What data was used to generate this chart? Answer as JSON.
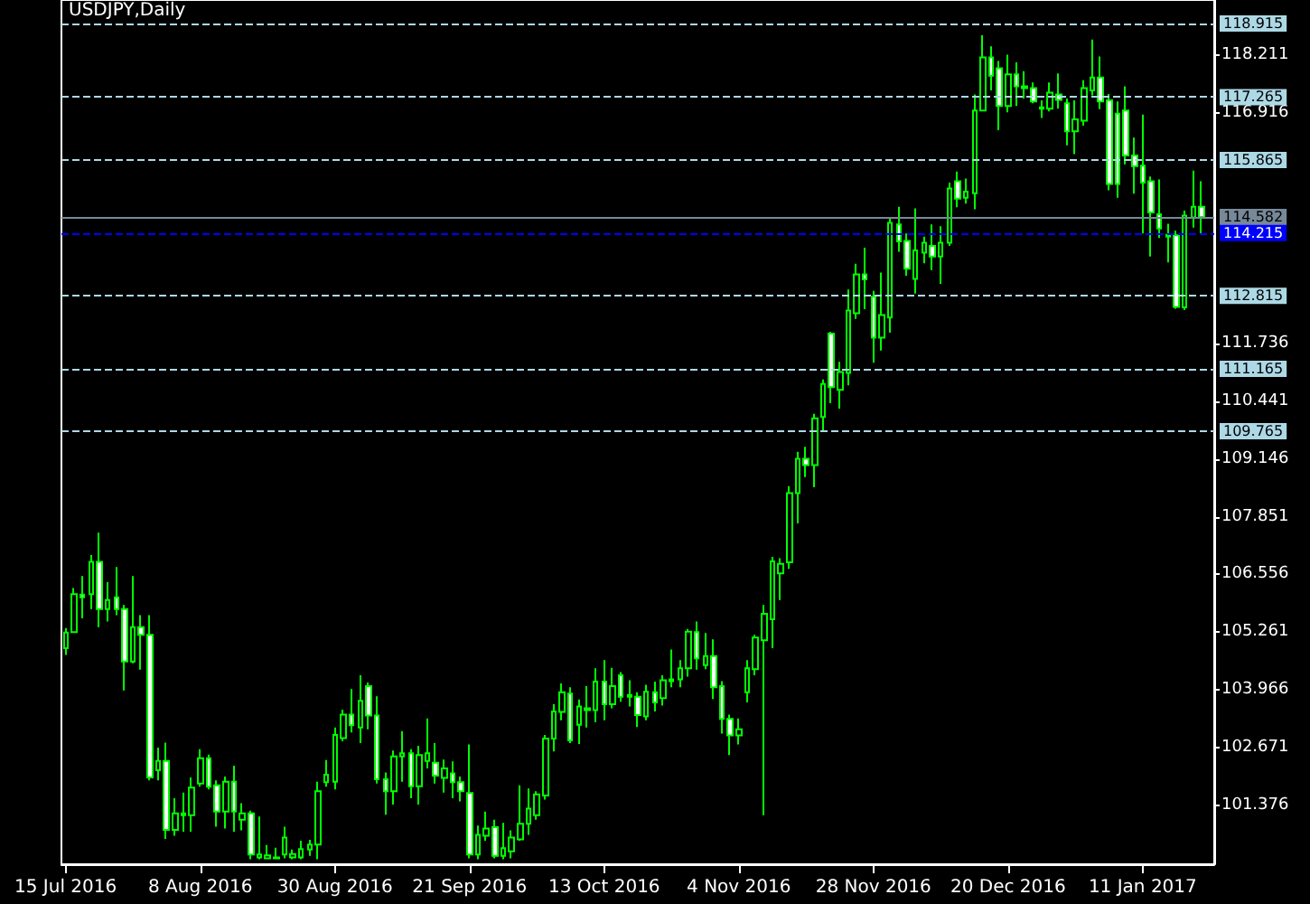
{
  "chart_data": {
    "type": "candlestick",
    "title": "USDJPY,Daily",
    "color": "#00ff00",
    "categories": [
      "15 Jul 2016",
      null,
      null,
      null,
      null,
      null,
      null,
      null,
      null,
      null,
      null,
      null,
      null,
      null,
      null,
      null,
      "8 Aug 2016",
      null,
      null,
      null,
      null,
      null,
      null,
      null,
      null,
      null,
      null,
      null,
      null,
      null,
      null,
      null,
      "30 Aug 2016",
      null,
      null,
      null,
      null,
      null,
      null,
      null,
      null,
      null,
      null,
      null,
      null,
      null,
      null,
      null,
      "21 Sep 2016",
      null,
      null,
      null,
      null,
      null,
      null,
      null,
      null,
      null,
      null,
      null,
      null,
      null,
      null,
      null,
      "13 Oct 2016",
      null,
      null,
      null,
      null,
      null,
      null,
      null,
      null,
      null,
      null,
      null,
      null,
      null,
      null,
      null,
      "4 Nov 2016",
      null,
      null,
      null,
      null,
      null,
      null,
      null,
      null,
      null,
      null,
      null,
      null,
      null,
      null,
      null,
      "28 Nov 2016",
      null,
      null,
      null,
      null,
      null,
      null,
      null,
      null,
      null,
      null,
      null,
      null,
      null,
      null,
      null,
      "20 Dec 2016",
      null,
      null,
      null,
      null,
      null,
      null,
      null,
      null,
      null,
      null,
      null,
      null,
      null,
      null,
      null,
      "11 Jan 2017",
      null,
      null,
      null,
      null,
      null,
      null,
      null
    ],
    "ohlc": [
      [
        104.9,
        105.35,
        104.75,
        105.25
      ],
      [
        105.26,
        106.25,
        105.24,
        106.11
      ],
      [
        106.1,
        106.52,
        105.57,
        106.04
      ],
      [
        106.11,
        106.99,
        105.78,
        106.84
      ],
      [
        106.84,
        107.49,
        105.37,
        105.78
      ],
      [
        105.78,
        106.38,
        105.5,
        105.98
      ],
      [
        106.04,
        106.72,
        105.64,
        105.78
      ],
      [
        105.78,
        105.87,
        103.95,
        104.6
      ],
      [
        104.6,
        106.52,
        104.56,
        105.37
      ],
      [
        105.37,
        105.64,
        104.42,
        105.2
      ],
      [
        105.2,
        105.64,
        101.93,
        102.0
      ],
      [
        102.16,
        102.67,
        101.93,
        102.37
      ],
      [
        102.37,
        102.78,
        100.62,
        100.82
      ],
      [
        100.82,
        101.53,
        100.69,
        101.19
      ],
      [
        101.19,
        101.66,
        100.78,
        101.15
      ],
      [
        101.15,
        102.0,
        100.78,
        101.77
      ],
      [
        101.86,
        102.63,
        101.79,
        102.43
      ],
      [
        102.43,
        102.51,
        101.73,
        101.79
      ],
      [
        101.82,
        101.93,
        100.89,
        101.23
      ],
      [
        101.23,
        102.02,
        100.85,
        101.9
      ],
      [
        101.9,
        102.26,
        100.78,
        101.23
      ],
      [
        101.05,
        101.42,
        100.81,
        101.19
      ],
      [
        101.19,
        101.25,
        100.16,
        100.27
      ],
      [
        100.2,
        101.12,
        100.16,
        100.27
      ],
      [
        100.18,
        100.48,
        100.16,
        100.25
      ],
      [
        100.2,
        100.42,
        100.16,
        100.18
      ],
      [
        100.27,
        100.89,
        100.18,
        100.65
      ],
      [
        100.2,
        100.38,
        100.16,
        100.28
      ],
      [
        100.2,
        100.58,
        100.16,
        100.39
      ],
      [
        100.38,
        100.6,
        100.24,
        100.49
      ],
      [
        100.49,
        101.9,
        100.16,
        101.69
      ],
      [
        101.89,
        102.39,
        101.79,
        102.06
      ],
      [
        101.9,
        103.12,
        101.73,
        102.95
      ],
      [
        102.88,
        103.52,
        102.81,
        103.41
      ],
      [
        103.41,
        103.98,
        103.01,
        103.17
      ],
      [
        103.12,
        104.29,
        102.77,
        103.72
      ],
      [
        104.05,
        104.13,
        103.08,
        103.39
      ],
      [
        103.39,
        103.82,
        101.86,
        101.96
      ],
      [
        101.96,
        102.11,
        101.16,
        101.69
      ],
      [
        101.69,
        102.6,
        101.39,
        102.47
      ],
      [
        102.47,
        103.04,
        101.9,
        102.54
      ],
      [
        102.54,
        102.63,
        101.53,
        101.8
      ],
      [
        101.8,
        102.71,
        101.39,
        102.5
      ],
      [
        102.37,
        103.32,
        102.2,
        102.54
      ],
      [
        102.33,
        102.77,
        101.86,
        102.04
      ],
      [
        101.99,
        102.4,
        101.66,
        102.2
      ],
      [
        102.09,
        102.36,
        101.53,
        101.89
      ],
      [
        101.89,
        102.02,
        101.46,
        101.69
      ],
      [
        101.65,
        102.74,
        100.18,
        100.27
      ],
      [
        100.27,
        100.92,
        100.16,
        100.71
      ],
      [
        100.69,
        101.23,
        100.58,
        100.85
      ],
      [
        100.88,
        101.05,
        100.18,
        100.24
      ],
      [
        100.24,
        100.98,
        100.16,
        100.41
      ],
      [
        100.34,
        100.81,
        100.18,
        100.65
      ],
      [
        100.61,
        101.82,
        100.58,
        100.96
      ],
      [
        100.96,
        101.75,
        100.71,
        101.3
      ],
      [
        101.15,
        101.69,
        101.05,
        101.62
      ],
      [
        101.59,
        102.95,
        101.5,
        102.87
      ],
      [
        102.87,
        103.64,
        102.58,
        103.48
      ],
      [
        103.47,
        104.11,
        103.28,
        103.91
      ],
      [
        103.88,
        104.02,
        102.77,
        102.83
      ],
      [
        103.18,
        103.75,
        102.75,
        103.59
      ],
      [
        103.55,
        104.05,
        103.12,
        103.51
      ],
      [
        103.51,
        104.45,
        103.24,
        104.15
      ],
      [
        104.15,
        104.63,
        103.28,
        103.64
      ],
      [
        103.64,
        104.46,
        103.55,
        104.05
      ],
      [
        104.29,
        104.36,
        103.7,
        103.81
      ],
      [
        103.85,
        104.18,
        103.59,
        103.81
      ],
      [
        103.81,
        103.91,
        103.13,
        103.4
      ],
      [
        103.37,
        104.08,
        103.28,
        103.92
      ],
      [
        103.91,
        104.15,
        103.48,
        103.68
      ],
      [
        103.78,
        104.29,
        103.61,
        104.18
      ],
      [
        104.16,
        104.87,
        104.02,
        104.2
      ],
      [
        104.2,
        104.63,
        104.02,
        104.45
      ],
      [
        104.45,
        105.33,
        104.26,
        105.27
      ],
      [
        105.26,
        105.5,
        104.42,
        104.67
      ],
      [
        104.52,
        105.24,
        104.43,
        104.72
      ],
      [
        104.72,
        105.1,
        103.76,
        104.02
      ],
      [
        104.05,
        104.16,
        102.98,
        103.31
      ],
      [
        103.31,
        103.41,
        102.5,
        102.94
      ],
      [
        102.94,
        103.32,
        102.74,
        103.08
      ],
      [
        103.91,
        104.63,
        103.68,
        104.45
      ],
      [
        104.43,
        105.2,
        104.29,
        105.14
      ],
      [
        105.08,
        105.87,
        101.15,
        105.67
      ],
      [
        105.55,
        106.95,
        104.9,
        106.85
      ],
      [
        106.58,
        106.92,
        105.98,
        106.79
      ],
      [
        106.83,
        108.54,
        106.68,
        108.38
      ],
      [
        108.38,
        109.31,
        107.7,
        109.15
      ],
      [
        109.15,
        109.42,
        108.74,
        109.01
      ],
      [
        109.01,
        110.16,
        108.51,
        110.06
      ],
      [
        110.09,
        110.93,
        109.78,
        110.83
      ],
      [
        111.96,
        112.0,
        110.4,
        110.76
      ],
      [
        110.7,
        111.33,
        110.28,
        111.1
      ],
      [
        111.08,
        112.95,
        110.8,
        112.48
      ],
      [
        112.42,
        113.53,
        112.29,
        113.29
      ],
      [
        113.29,
        113.89,
        112.51,
        113.18
      ],
      [
        112.79,
        112.92,
        111.31,
        111.87
      ],
      [
        111.87,
        113.33,
        111.58,
        112.38
      ],
      [
        112.32,
        114.54,
        111.98,
        114.45
      ],
      [
        114.41,
        114.81,
        113.8,
        114.03
      ],
      [
        114.04,
        114.21,
        113.26,
        113.42
      ],
      [
        113.19,
        114.77,
        112.86,
        113.83
      ],
      [
        113.78,
        114.14,
        113.54,
        114.0
      ],
      [
        113.93,
        114.41,
        113.39,
        113.69
      ],
      [
        113.69,
        114.37,
        113.08,
        114.0
      ],
      [
        114.0,
        115.35,
        113.93,
        115.22
      ],
      [
        115.38,
        115.6,
        114.8,
        114.99
      ],
      [
        115.01,
        115.44,
        114.88,
        115.15
      ],
      [
        115.11,
        117.33,
        114.75,
        116.97
      ],
      [
        116.97,
        118.66,
        116.97,
        118.16
      ],
      [
        118.16,
        118.41,
        117.42,
        117.75
      ],
      [
        117.92,
        118.08,
        116.53,
        117.07
      ],
      [
        117.07,
        118.22,
        116.93,
        117.78
      ],
      [
        117.78,
        118.05,
        117.07,
        117.51
      ],
      [
        117.51,
        117.85,
        117.24,
        117.47
      ],
      [
        117.47,
        117.6,
        117.13,
        117.17
      ],
      [
        117.04,
        117.2,
        116.8,
        117.01
      ],
      [
        117.01,
        117.6,
        116.95,
        117.37
      ],
      [
        117.33,
        117.8,
        117.01,
        117.21
      ],
      [
        117.13,
        117.24,
        116.19,
        116.5
      ],
      [
        116.5,
        117.2,
        115.99,
        116.77
      ],
      [
        116.74,
        117.65,
        116.63,
        117.47
      ],
      [
        117.42,
        118.56,
        117.31,
        117.71
      ],
      [
        117.71,
        118.18,
        117.0,
        117.17
      ],
      [
        117.2,
        117.34,
        115.18,
        115.32
      ],
      [
        116.9,
        117.17,
        115.01,
        115.32
      ],
      [
        116.97,
        117.51,
        115.76,
        115.96
      ],
      [
        115.96,
        116.36,
        115.1,
        115.72
      ],
      [
        115.73,
        116.88,
        114.21,
        115.35
      ],
      [
        115.38,
        115.49,
        113.69,
        114.68
      ],
      [
        114.64,
        115.42,
        114.11,
        114.32
      ],
      [
        114.18,
        114.43,
        113.56,
        114.14
      ],
      [
        114.17,
        114.27,
        112.52,
        112.56
      ],
      [
        112.55,
        114.72,
        112.49,
        114.61
      ],
      [
        114.57,
        115.62,
        114.34,
        114.81
      ],
      [
        114.81,
        115.38,
        114.2,
        114.58
      ]
    ],
    "ylim": [
      100.05,
      119.45
    ],
    "yticks": [
      101.376,
      102.671,
      103.966,
      105.261,
      106.556,
      107.851,
      109.146,
      110.441,
      111.736,
      116.916,
      118.211
    ],
    "ref_lines": [
      {
        "axis": "y",
        "value": 118.915,
        "label": "118.915",
        "color": "#add8e6",
        "line_style": "dashed"
      },
      {
        "axis": "y",
        "value": 117.265,
        "label": "117.265",
        "color": "#add8e6",
        "line_style": "dashed"
      },
      {
        "axis": "y",
        "value": 115.865,
        "label": "115.865",
        "color": "#add8e6",
        "line_style": "dashed"
      },
      {
        "axis": "y",
        "value": 114.582,
        "label": "114.582",
        "color": "#778899",
        "line_style": "solid"
      },
      {
        "axis": "y",
        "value": 114.215,
        "label": "114.215",
        "color": "#0000ff",
        "line_style": "dashed"
      },
      {
        "axis": "y",
        "value": 112.815,
        "label": "112.815",
        "color": "#add8e6",
        "line_style": "dashed"
      },
      {
        "axis": "y",
        "value": 111.165,
        "label": "111.165",
        "color": "#add8e6",
        "line_style": "dashed"
      },
      {
        "axis": "y",
        "value": 109.765,
        "label": "109.765",
        "color": "#add8e6",
        "line_style": "dashed"
      }
    ]
  }
}
